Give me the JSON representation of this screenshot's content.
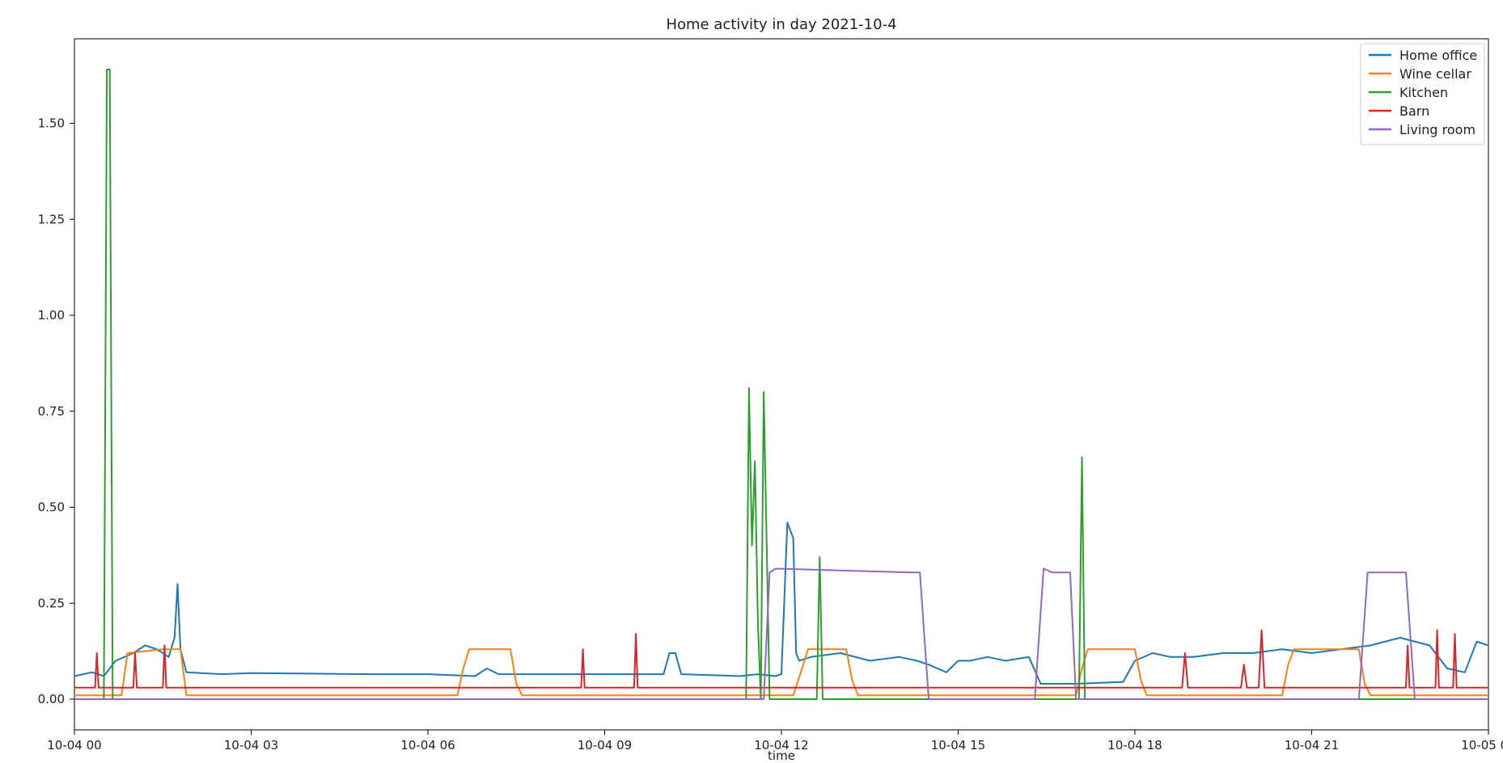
{
  "chart_data": {
    "type": "line",
    "title": "Home activity in day 2021-10-4",
    "xlabel": "time",
    "ylabel": "",
    "xlim": [
      0,
      24
    ],
    "ylim": [
      -0.08,
      1.72
    ],
    "x_ticks": [
      {
        "value": 0,
        "label": "10-04 00"
      },
      {
        "value": 3,
        "label": "10-04 03"
      },
      {
        "value": 6,
        "label": "10-04 06"
      },
      {
        "value": 9,
        "label": "10-04 09"
      },
      {
        "value": 12,
        "label": "10-04 12"
      },
      {
        "value": 15,
        "label": "10-04 15"
      },
      {
        "value": 18,
        "label": "10-04 18"
      },
      {
        "value": 21,
        "label": "10-04 21"
      },
      {
        "value": 24,
        "label": "10-05 00"
      }
    ],
    "y_ticks": [
      {
        "value": 0.0,
        "label": "0.00"
      },
      {
        "value": 0.25,
        "label": "0.25"
      },
      {
        "value": 0.5,
        "label": "0.50"
      },
      {
        "value": 0.75,
        "label": "0.75"
      },
      {
        "value": 1.0,
        "label": "1.00"
      },
      {
        "value": 1.25,
        "label": "1.25"
      },
      {
        "value": 1.5,
        "label": "1.50"
      }
    ],
    "grid": false,
    "legend_position": "top-right",
    "series": [
      {
        "name": "Home office",
        "color": "#1f77b4",
        "x": [
          0,
          0.3,
          0.5,
          0.7,
          1.0,
          1.2,
          1.4,
          1.6,
          1.7,
          1.75,
          1.8,
          1.9,
          2.5,
          3,
          5,
          6,
          6.8,
          7.0,
          7.2,
          8,
          9,
          10,
          10.1,
          10.2,
          10.3,
          11.3,
          11.6,
          11.9,
          12.0,
          12.1,
          12.15,
          12.2,
          12.25,
          12.3,
          12.5,
          13,
          13.5,
          14,
          14.3,
          14.5,
          14.8,
          15.0,
          15.2,
          15.5,
          15.8,
          16.2,
          16.4,
          17.0,
          17.8,
          18.0,
          18.3,
          18.6,
          19.0,
          19.5,
          20.0,
          20.5,
          21.0,
          21.5,
          22.0,
          22.5,
          23.0,
          23.3,
          23.6,
          23.8,
          24
        ],
        "y": [
          0.06,
          0.07,
          0.06,
          0.1,
          0.12,
          0.14,
          0.13,
          0.11,
          0.16,
          0.3,
          0.13,
          0.07,
          0.065,
          0.068,
          0.065,
          0.065,
          0.06,
          0.08,
          0.065,
          0.065,
          0.065,
          0.065,
          0.12,
          0.12,
          0.065,
          0.06,
          0.065,
          0.06,
          0.065,
          0.46,
          0.44,
          0.42,
          0.12,
          0.1,
          0.11,
          0.12,
          0.1,
          0.11,
          0.1,
          0.09,
          0.07,
          0.1,
          0.1,
          0.11,
          0.1,
          0.11,
          0.04,
          0.04,
          0.045,
          0.1,
          0.12,
          0.11,
          0.11,
          0.12,
          0.12,
          0.13,
          0.12,
          0.13,
          0.14,
          0.16,
          0.14,
          0.08,
          0.07,
          0.15,
          0.14
        ]
      },
      {
        "name": "Wine cellar",
        "color": "#ff7f0e",
        "x": [
          0,
          0.8,
          0.9,
          1.5,
          1.8,
          1.9,
          6.5,
          6.6,
          6.7,
          7.4,
          7.5,
          7.6,
          12.2,
          12.35,
          12.45,
          13.1,
          13.2,
          13.3,
          17.0,
          17.1,
          17.2,
          18.0,
          18.1,
          18.2,
          20.5,
          20.6,
          20.7,
          21.8,
          21.9,
          22.0,
          24
        ],
        "y": [
          0.01,
          0.01,
          0.12,
          0.13,
          0.13,
          0.01,
          0.01,
          0.08,
          0.13,
          0.13,
          0.04,
          0.01,
          0.01,
          0.08,
          0.13,
          0.13,
          0.05,
          0.01,
          0.01,
          0.08,
          0.13,
          0.13,
          0.05,
          0.01,
          0.01,
          0.09,
          0.13,
          0.13,
          0.04,
          0.01,
          0.01
        ]
      },
      {
        "name": "Kitchen",
        "color": "#2ca02c",
        "x": [
          0,
          0.5,
          0.55,
          0.6,
          0.65,
          0.7,
          11.4,
          11.45,
          11.5,
          11.55,
          11.6,
          11.65,
          11.7,
          11.75,
          11.8,
          11.85,
          11.9,
          12.6,
          12.65,
          12.7,
          12.75,
          17.0,
          17.05,
          17.1,
          17.15,
          17.2,
          24
        ],
        "y": [
          0.0,
          0.0,
          1.64,
          1.64,
          0.0,
          0.0,
          0.0,
          0.81,
          0.4,
          0.62,
          0.2,
          0.0,
          0.8,
          0.4,
          0.0,
          0.0,
          0.0,
          0.0,
          0.37,
          0.0,
          0.0,
          0.0,
          0.0,
          0.63,
          0.0,
          0.0,
          0.0
        ]
      },
      {
        "name": "Barn",
        "color": "#d62728",
        "x": [
          0,
          0.35,
          0.38,
          0.41,
          1.0,
          1.03,
          1.06,
          1.5,
          1.53,
          1.56,
          8.6,
          8.63,
          8.66,
          9.5,
          9.53,
          9.56,
          18.8,
          18.85,
          18.9,
          19.8,
          19.85,
          19.9,
          20.1,
          20.15,
          20.2,
          22.6,
          22.63,
          22.66,
          23.1,
          23.13,
          23.16,
          23.4,
          23.43,
          23.46,
          24
        ],
        "y": [
          0.03,
          0.03,
          0.12,
          0.03,
          0.03,
          0.12,
          0.03,
          0.03,
          0.14,
          0.03,
          0.03,
          0.13,
          0.03,
          0.03,
          0.17,
          0.03,
          0.03,
          0.12,
          0.03,
          0.03,
          0.09,
          0.03,
          0.03,
          0.18,
          0.03,
          0.03,
          0.14,
          0.03,
          0.03,
          0.18,
          0.03,
          0.03,
          0.17,
          0.03,
          0.03
        ]
      },
      {
        "name": "Living room",
        "color": "#9467bd",
        "x": [
          0,
          11.7,
          11.8,
          11.9,
          14.2,
          14.35,
          14.5,
          16.3,
          16.45,
          16.6,
          16.9,
          17.0,
          17.1,
          21.8,
          21.95,
          22.1,
          22.6,
          22.75,
          22.9,
          24
        ],
        "y": [
          0.0,
          0.0,
          0.33,
          0.34,
          0.33,
          0.33,
          0.0,
          0.0,
          0.34,
          0.33,
          0.33,
          0.0,
          0.0,
          0.0,
          0.33,
          0.33,
          0.33,
          0.0,
          0.0,
          0.0
        ]
      }
    ]
  }
}
